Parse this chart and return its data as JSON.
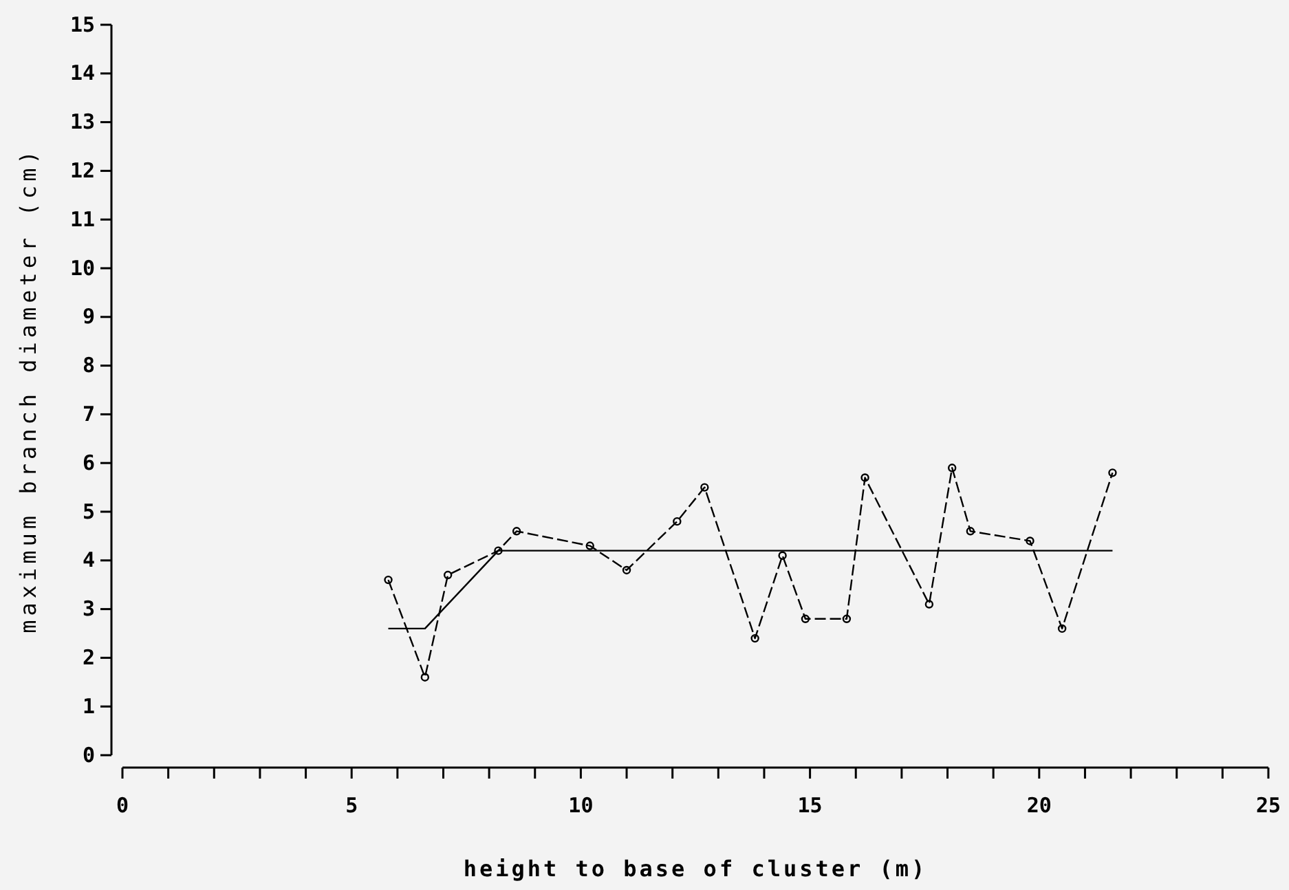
{
  "chart_data": {
    "type": "line",
    "xlabel": "height to base of cluster (m)",
    "ylabel": "maximum branch diameter (cm)",
    "xlim": [
      0,
      25
    ],
    "ylim": [
      0,
      15
    ],
    "xticks": [
      0,
      {
        "value": 1,
        "label": null
      },
      {
        "value": 2,
        "label": null
      },
      {
        "value": 3,
        "label": null
      },
      {
        "value": 4,
        "label": null
      },
      5,
      {
        "value": 6,
        "label": null
      },
      {
        "value": 7,
        "label": null
      },
      {
        "value": 8,
        "label": null
      },
      {
        "value": 9,
        "label": null
      },
      10,
      {
        "value": 11,
        "label": null
      },
      {
        "value": 12,
        "label": null
      },
      {
        "value": 13,
        "label": null
      },
      {
        "value": 14,
        "label": null
      },
      15,
      {
        "value": 16,
        "label": null
      },
      {
        "value": 17,
        "label": null
      },
      {
        "value": 18,
        "label": null
      },
      {
        "value": 19,
        "label": null
      },
      20,
      {
        "value": 21,
        "label": null
      },
      {
        "value": 22,
        "label": null
      },
      {
        "value": 23,
        "label": null
      },
      {
        "value": 24,
        "label": null
      },
      25
    ],
    "yticks": [
      0,
      1,
      2,
      3,
      4,
      5,
      6,
      7,
      8,
      9,
      10,
      11,
      12,
      13,
      14,
      15
    ],
    "grid": false,
    "series": [
      {
        "color": "#000000",
        "marker": "circle",
        "line_style": "dashed",
        "x": [
          5.8,
          6.6,
          7.1,
          8.2,
          8.6,
          10.2,
          11.0,
          12.1,
          12.7,
          13.8,
          14.4,
          14.9,
          15.8,
          16.2,
          17.6,
          18.1,
          18.5,
          19.8,
          20.5,
          21.6
        ],
        "values": [
          3.6,
          1.6,
          3.7,
          4.2,
          4.6,
          4.3,
          3.8,
          4.8,
          5.5,
          2.4,
          4.1,
          2.8,
          2.8,
          5.7,
          3.1,
          5.9,
          4.6,
          4.4,
          2.6,
          5.8
        ]
      },
      {
        "color": "#000000",
        "marker": "none",
        "line_style": "solid",
        "x": [
          5.8,
          6.6,
          8.2,
          21.6
        ],
        "values": [
          2.6,
          2.6,
          4.2,
          4.2
        ]
      }
    ]
  }
}
